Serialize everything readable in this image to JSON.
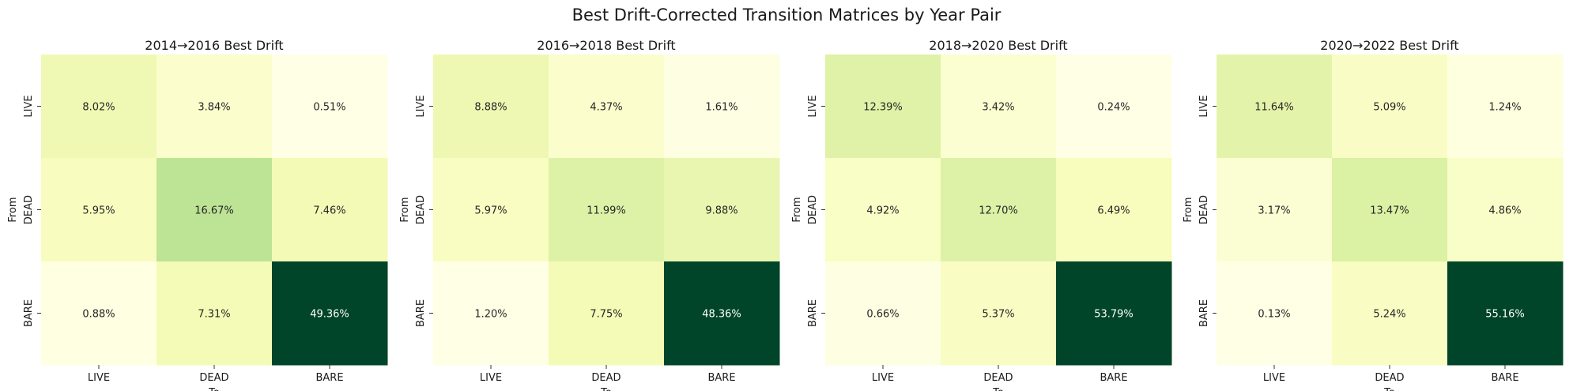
{
  "figure_title": "Best Drift-Corrected Transition Matrices by Year Pair",
  "chart_data": [
    {
      "type": "heatmap",
      "title": "2014→2016 Best Drift",
      "xlabel": "To",
      "ylabel": "From",
      "x_categories": [
        "LIVE",
        "DEAD",
        "BARE"
      ],
      "y_categories": [
        "LIVE",
        "DEAD",
        "BARE"
      ],
      "values": [
        [
          8.02,
          3.84,
          0.51
        ],
        [
          5.95,
          16.67,
          7.46
        ],
        [
          0.88,
          7.31,
          49.36
        ]
      ],
      "labels": [
        [
          "8.02%",
          "3.84%",
          "0.51%"
        ],
        [
          "5.95%",
          "16.67%",
          "7.46%"
        ],
        [
          "0.88%",
          "7.31%",
          "49.36%"
        ]
      ],
      "colormap": "YlGn",
      "colorbar": false
    },
    {
      "type": "heatmap",
      "title": "2016→2018 Best Drift",
      "xlabel": "To",
      "ylabel": "From",
      "x_categories": [
        "LIVE",
        "DEAD",
        "BARE"
      ],
      "y_categories": [
        "LIVE",
        "DEAD",
        "BARE"
      ],
      "values": [
        [
          8.88,
          4.37,
          1.61
        ],
        [
          5.97,
          11.99,
          9.88
        ],
        [
          1.2,
          7.75,
          48.36
        ]
      ],
      "labels": [
        [
          "8.88%",
          "4.37%",
          "1.61%"
        ],
        [
          "5.97%",
          "11.99%",
          "9.88%"
        ],
        [
          "1.20%",
          "7.75%",
          "48.36%"
        ]
      ],
      "colormap": "YlGn",
      "colorbar": false
    },
    {
      "type": "heatmap",
      "title": "2018→2020 Best Drift",
      "xlabel": "To",
      "ylabel": "From",
      "x_categories": [
        "LIVE",
        "DEAD",
        "BARE"
      ],
      "y_categories": [
        "LIVE",
        "DEAD",
        "BARE"
      ],
      "values": [
        [
          12.39,
          3.42,
          0.24
        ],
        [
          4.92,
          12.7,
          6.49
        ],
        [
          0.66,
          5.37,
          53.79
        ]
      ],
      "labels": [
        [
          "12.39%",
          "3.42%",
          "0.24%"
        ],
        [
          "4.92%",
          "12.70%",
          "6.49%"
        ],
        [
          "0.66%",
          "5.37%",
          "53.79%"
        ]
      ],
      "colormap": "YlGn",
      "colorbar": false
    },
    {
      "type": "heatmap",
      "title": "2020→2022 Best Drift",
      "xlabel": "To",
      "ylabel": "From",
      "x_categories": [
        "LIVE",
        "DEAD",
        "BARE"
      ],
      "y_categories": [
        "LIVE",
        "DEAD",
        "BARE"
      ],
      "values": [
        [
          11.64,
          5.09,
          1.24
        ],
        [
          3.17,
          13.47,
          4.86
        ],
        [
          0.13,
          5.24,
          55.16
        ]
      ],
      "labels": [
        [
          "11.64%",
          "5.09%",
          "1.24%"
        ],
        [
          "3.17%",
          "13.47%",
          "4.86%"
        ],
        [
          "0.13%",
          "5.24%",
          "55.16%"
        ]
      ],
      "colormap": "YlGn",
      "colorbar": false
    }
  ]
}
